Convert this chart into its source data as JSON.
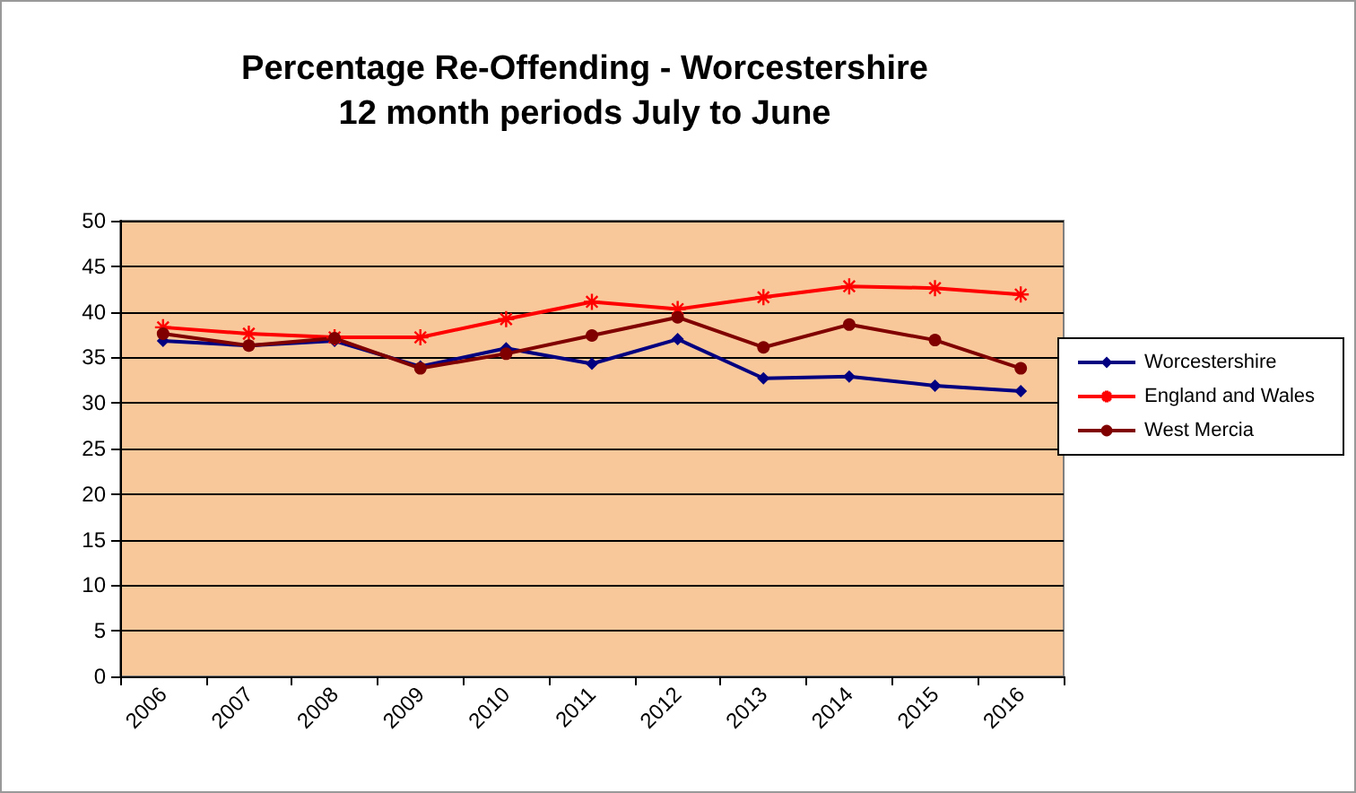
{
  "chart_data": {
    "type": "line",
    "title": "Percentage Re-Offending - Worcestershire\n12 month periods July to June",
    "categories": [
      "2006",
      "2007",
      "2008",
      "2009",
      "2010",
      "2011",
      "2012",
      "2013",
      "2014",
      "2015",
      "2016"
    ],
    "series": [
      {
        "name": "Worcestershire",
        "color": "#000080",
        "marker": "diamond",
        "values": [
          36.8,
          36.3,
          36.8,
          34.0,
          36.0,
          34.3,
          37.0,
          32.7,
          32.9,
          31.9,
          31.3
        ]
      },
      {
        "name": "England and Wales",
        "color": "#ff0000",
        "marker": "cross",
        "values": [
          38.3,
          37.6,
          37.2,
          37.2,
          39.2,
          41.1,
          40.3,
          41.6,
          42.8,
          42.6,
          41.9
        ]
      },
      {
        "name": "West Mercia",
        "color": "#800000",
        "marker": "circle",
        "values": [
          37.6,
          36.3,
          37.1,
          33.8,
          35.4,
          37.4,
          39.4,
          36.1,
          38.6,
          36.9,
          33.8
        ]
      }
    ],
    "ylim": [
      0,
      50
    ],
    "yticks": [
      0,
      5,
      10,
      15,
      20,
      25,
      30,
      35,
      40,
      45,
      50
    ],
    "grid": "y",
    "legend": "right"
  }
}
